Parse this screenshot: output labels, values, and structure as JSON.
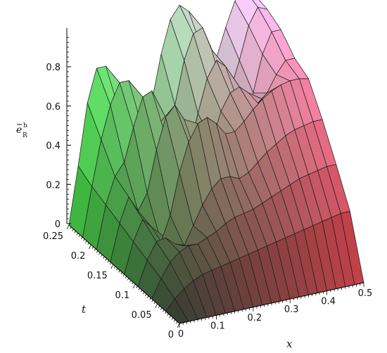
{
  "chart_data": {
    "type": "surface3d",
    "title": "",
    "xlabel": "x",
    "ylabel": "t",
    "zlabel": {
      "main": "e",
      "sub": "R",
      "sup": "h"
    },
    "xlim": [
      0,
      0.5
    ],
    "ylim": [
      0,
      0.25
    ],
    "zlim": [
      0,
      0.95
    ],
    "x_ticks": [
      "0",
      "0.1",
      "0.2",
      "0.3",
      "0.4",
      "0.5"
    ],
    "t_ticks": [
      "0",
      "0.05",
      "0.1",
      "0.15",
      "0.2",
      "0.25"
    ],
    "z_ticks": [
      "0",
      "0.2",
      "0.4",
      "0.6",
      "0.8"
    ],
    "x_tick_values": [
      0,
      0.1,
      0.2,
      0.3,
      0.4,
      0.5
    ],
    "t_tick_values": [
      0,
      0.05,
      0.1,
      0.15,
      0.2,
      0.25
    ],
    "z_tick_values": [
      0,
      0.2,
      0.4,
      0.6,
      0.8
    ],
    "grid": false,
    "legend": "none",
    "surface": {
      "x": [
        0,
        0.025,
        0.05,
        0.075,
        0.1,
        0.125,
        0.15,
        0.175,
        0.2,
        0.225,
        0.25,
        0.275,
        0.3,
        0.325,
        0.35,
        0.375,
        0.4,
        0.425,
        0.45,
        0.475,
        0.5
      ],
      "t": [
        0,
        0.03125,
        0.0625,
        0.09375,
        0.125,
        0.15625,
        0.1875,
        0.21875,
        0.25
      ],
      "z": [
        [
          0,
          0,
          0,
          0,
          0,
          0,
          0,
          0,
          0,
          0,
          0,
          0,
          0,
          0,
          0,
          0,
          0,
          0,
          0,
          0,
          0
        ],
        [
          0,
          0.05,
          0.09,
          0.12,
          0.14,
          0.15,
          0.16,
          0.17,
          0.18,
          0.19,
          0.2,
          0.21,
          0.22,
          0.23,
          0.24,
          0.25,
          0.26,
          0.27,
          0.28,
          0.29,
          0.29
        ],
        [
          0,
          0.09,
          0.16,
          0.2,
          0.22,
          0.22,
          0.24,
          0.26,
          0.29,
          0.31,
          0.32,
          0.33,
          0.35,
          0.37,
          0.39,
          0.41,
          0.43,
          0.44,
          0.45,
          0.46,
          0.46
        ],
        [
          0,
          0.12,
          0.2,
          0.21,
          0.17,
          0.15,
          0.24,
          0.33,
          0.4,
          0.44,
          0.44,
          0.42,
          0.44,
          0.48,
          0.52,
          0.55,
          0.58,
          0.6,
          0.61,
          0.62,
          0.62
        ],
        [
          0,
          0.15,
          0.25,
          0.2,
          0.12,
          0.24,
          0.44,
          0.58,
          0.66,
          0.68,
          0.64,
          0.58,
          0.58,
          0.62,
          0.67,
          0.71,
          0.74,
          0.76,
          0.77,
          0.77,
          0.76
        ],
        [
          0,
          0.18,
          0.3,
          0.22,
          0.3,
          0.5,
          0.65,
          0.7,
          0.62,
          0.48,
          0.38,
          0.48,
          0.62,
          0.7,
          0.72,
          0.68,
          0.62,
          0.66,
          0.74,
          0.8,
          0.8
        ],
        [
          0,
          0.21,
          0.34,
          0.4,
          0.56,
          0.7,
          0.72,
          0.56,
          0.42,
          0.34,
          0.38,
          0.56,
          0.72,
          0.8,
          0.76,
          0.62,
          0.5,
          0.6,
          0.78,
          0.88,
          0.88
        ],
        [
          0,
          0.24,
          0.46,
          0.62,
          0.72,
          0.72,
          0.55,
          0.36,
          0.28,
          0.36,
          0.55,
          0.76,
          0.88,
          0.9,
          0.78,
          0.6,
          0.56,
          0.7,
          0.86,
          0.94,
          0.92
        ],
        [
          0,
          0.28,
          0.58,
          0.74,
          0.74,
          0.58,
          0.38,
          0.28,
          0.34,
          0.52,
          0.74,
          0.9,
          0.96,
          0.92,
          0.78,
          0.62,
          0.66,
          0.8,
          0.92,
          0.97,
          0.94
        ]
      ]
    }
  }
}
